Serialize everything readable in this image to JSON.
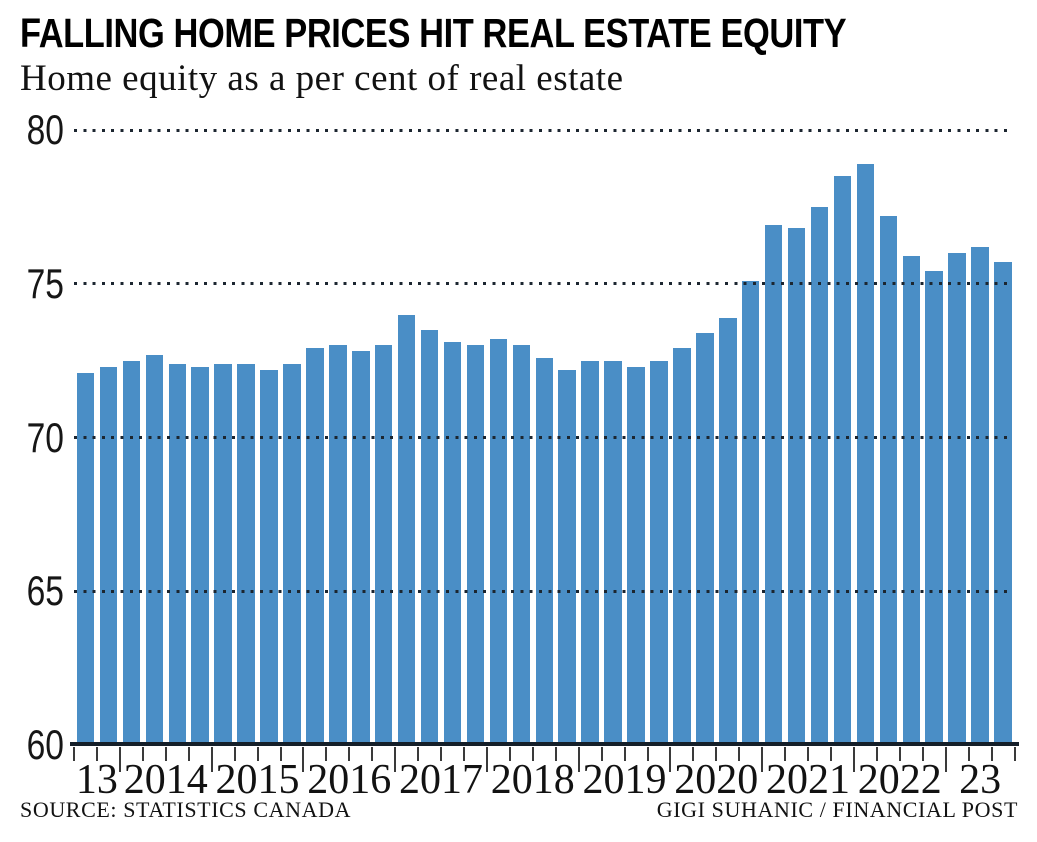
{
  "header": {
    "title": "FALLING HOME PRICES HIT REAL ESTATE EQUITY",
    "subtitle": "Home equity as a per cent of real estate"
  },
  "footer": {
    "source": "SOURCE: STATISTICS CANADA",
    "credit": "GIGI SUHANIC / FINANCIAL POST"
  },
  "chart_data": {
    "type": "bar",
    "title": "FALLING HOME PRICES HIT REAL ESTATE EQUITY",
    "subtitle": "Home equity as a per cent of real estate",
    "ylabel": "Home equity as a per cent of real estate",
    "ylim": [
      60,
      80
    ],
    "y_ticks": [
      80,
      75,
      70,
      65,
      60
    ],
    "grid": "dotted-horizontal-on-top",
    "legend": "none",
    "bar_color": "#4a8ec6",
    "axis_color": "#151f29",
    "x_year_labels": [
      "13",
      "2014",
      "2015",
      "2016",
      "2017",
      "2018",
      "2019",
      "2020",
      "2021",
      "2022",
      "23"
    ],
    "bars_per_year": [
      2,
      4,
      4,
      4,
      4,
      4,
      4,
      4,
      4,
      4,
      3
    ],
    "categories": [
      "2013 Q3",
      "2013 Q4",
      "2014 Q1",
      "2014 Q2",
      "2014 Q3",
      "2014 Q4",
      "2015 Q1",
      "2015 Q2",
      "2015 Q3",
      "2015 Q4",
      "2016 Q1",
      "2016 Q2",
      "2016 Q3",
      "2016 Q4",
      "2017 Q1",
      "2017 Q2",
      "2017 Q3",
      "2017 Q4",
      "2018 Q1",
      "2018 Q2",
      "2018 Q3",
      "2018 Q4",
      "2019 Q1",
      "2019 Q2",
      "2019 Q3",
      "2019 Q4",
      "2020 Q1",
      "2020 Q2",
      "2020 Q3",
      "2020 Q4",
      "2021 Q1",
      "2021 Q2",
      "2021 Q3",
      "2021 Q4",
      "2022 Q1",
      "2022 Q2",
      "2022 Q3",
      "2022 Q4",
      "2023 Q1",
      "2023 Q2",
      "2023 Q3"
    ],
    "values": [
      72.1,
      72.3,
      72.5,
      72.7,
      72.4,
      72.3,
      72.4,
      72.4,
      72.2,
      72.4,
      72.9,
      73.0,
      72.8,
      73.0,
      74.0,
      73.5,
      73.1,
      73.0,
      73.2,
      73.0,
      72.6,
      72.2,
      72.5,
      72.5,
      72.3,
      72.5,
      72.9,
      73.4,
      73.9,
      75.1,
      76.9,
      76.8,
      77.5,
      78.5,
      78.9,
      77.2,
      75.9,
      75.4,
      76.0,
      76.2,
      75.7
    ]
  }
}
